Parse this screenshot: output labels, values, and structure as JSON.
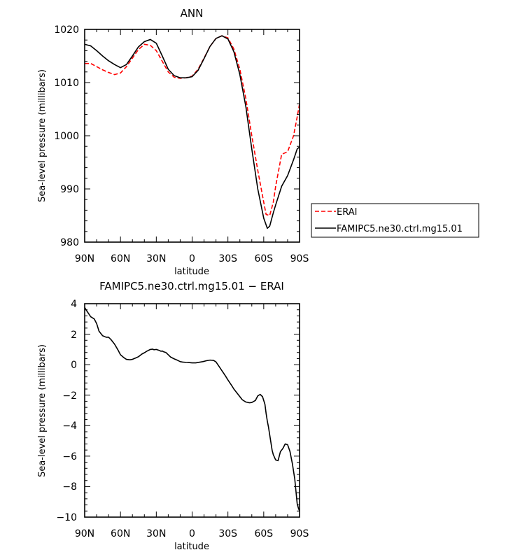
{
  "chart_data": [
    {
      "type": "line",
      "title": "ANN",
      "xlabel": "latitude",
      "ylabel": "Sea-level pressure (millibars)",
      "xlim": [
        90,
        -90
      ],
      "ylim": [
        980,
        1020
      ],
      "x_ticks": [
        90,
        60,
        30,
        0,
        -30,
        -60,
        -90
      ],
      "x_tick_labels": [
        "90N",
        "60N",
        "30N",
        "0",
        "30S",
        "60S",
        "90S"
      ],
      "y_ticks": [
        980,
        990,
        1000,
        1010,
        1020
      ],
      "y_tick_labels": [
        "980",
        "990",
        "1000",
        "1010",
        "1020"
      ],
      "legend_position": "right",
      "grid": false,
      "series": [
        {
          "name": "ERAI",
          "color": "#ff0000",
          "dash": "dashed",
          "x": [
            90,
            85,
            80,
            75,
            70,
            65,
            60,
            55,
            50,
            45,
            40,
            35,
            30,
            25,
            20,
            15,
            10,
            5,
            0,
            -5,
            -10,
            -15,
            -20,
            -25,
            -30,
            -35,
            -40,
            -45,
            -50,
            -55,
            -60,
            -62,
            -65,
            -68,
            -70,
            -75,
            -80,
            -85,
            -88,
            -90
          ],
          "y": [
            1013.6,
            1013.6,
            1013.0,
            1012.4,
            1011.9,
            1011.5,
            1011.8,
            1013.0,
            1014.6,
            1016.2,
            1017.2,
            1017.0,
            1016.0,
            1014.0,
            1012.0,
            1011.0,
            1010.8,
            1010.9,
            1011.2,
            1012.5,
            1014.6,
            1016.8,
            1018.3,
            1018.8,
            1018.4,
            1016.3,
            1012.5,
            1007.0,
            1000.0,
            993.5,
            987.5,
            985.2,
            985.0,
            987.5,
            990.5,
            996.5,
            997.0,
            1000.0,
            1003.5,
            1006.0
          ]
        },
        {
          "name": "FAMIPC5.ne30.ctrl.mg15.01",
          "color": "#000000",
          "dash": "solid",
          "x": [
            90,
            85,
            80,
            75,
            70,
            65,
            60,
            55,
            50,
            45,
            40,
            35,
            30,
            25,
            20,
            15,
            10,
            5,
            0,
            -5,
            -10,
            -15,
            -20,
            -25,
            -30,
            -35,
            -40,
            -45,
            -50,
            -55,
            -60,
            -63,
            -65,
            -68,
            -70,
            -75,
            -80,
            -85,
            -88,
            -90
          ],
          "y": [
            1017.2,
            1016.9,
            1016.0,
            1015.0,
            1014.1,
            1013.4,
            1012.8,
            1013.4,
            1015.0,
            1016.7,
            1017.7,
            1018.1,
            1017.4,
            1015.0,
            1012.5,
            1011.3,
            1010.9,
            1010.9,
            1011.1,
            1012.3,
            1014.5,
            1016.8,
            1018.3,
            1018.8,
            1018.2,
            1015.8,
            1011.5,
            1005.5,
            997.5,
            990.0,
            984.5,
            982.6,
            983.0,
            985.5,
            987.0,
            990.5,
            992.5,
            995.5,
            997.5,
            997.9
          ]
        }
      ]
    },
    {
      "type": "line",
      "title": "FAMIPC5.ne30.ctrl.mg15.01 − ERAI",
      "xlabel": "latitude",
      "ylabel": "Sea-level pressure (millibars)",
      "xlim": [
        90,
        -90
      ],
      "ylim": [
        -10,
        4
      ],
      "x_ticks": [
        90,
        60,
        30,
        0,
        -30,
        -60,
        -90
      ],
      "x_tick_labels": [
        "90N",
        "60N",
        "30N",
        "0",
        "30S",
        "60S",
        "90S"
      ],
      "y_ticks": [
        -10,
        -8,
        -6,
        -4,
        -2,
        0,
        2,
        4
      ],
      "y_tick_labels": [
        "−10",
        "−8",
        "−6",
        "−4",
        "−2",
        "0",
        "2",
        "4"
      ],
      "grid": false,
      "series": [
        {
          "color": "#000000",
          "dash": "solid",
          "x": [
            90,
            88,
            85,
            82,
            80,
            78,
            75,
            72,
            70,
            68,
            65,
            62,
            60,
            57,
            55,
            52,
            50,
            47,
            45,
            42,
            40,
            38,
            35,
            33,
            32,
            30,
            28,
            26,
            25,
            24,
            22,
            20,
            18,
            15,
            12,
            10,
            8,
            5,
            3,
            0,
            -3,
            -6,
            -9,
            -12,
            -15,
            -18,
            -20,
            -22,
            -25,
            -28,
            -30,
            -33,
            -35,
            -38,
            -40,
            -42,
            -45,
            -48,
            -50,
            -53,
            -55,
            -57,
            -59,
            -61,
            -62,
            -63,
            -64,
            -65,
            -66,
            -67,
            -68,
            -70,
            -72,
            -74,
            -76,
            -78,
            -80,
            -82,
            -84,
            -86,
            -87,
            -88,
            -89,
            -90
          ],
          "y": [
            3.75,
            3.5,
            3.15,
            3.0,
            2.7,
            2.2,
            1.9,
            1.8,
            1.8,
            1.65,
            1.35,
            0.95,
            0.65,
            0.45,
            0.35,
            0.32,
            0.35,
            0.45,
            0.52,
            0.7,
            0.78,
            0.88,
            1.0,
            1.02,
            0.98,
            1.0,
            0.95,
            0.88,
            0.9,
            0.85,
            0.8,
            0.65,
            0.5,
            0.38,
            0.28,
            0.2,
            0.17,
            0.15,
            0.14,
            0.12,
            0.12,
            0.16,
            0.2,
            0.26,
            0.3,
            0.28,
            0.18,
            -0.05,
            -0.4,
            -0.75,
            -1.0,
            -1.35,
            -1.6,
            -1.9,
            -2.1,
            -2.3,
            -2.45,
            -2.5,
            -2.48,
            -2.35,
            -2.05,
            -1.95,
            -2.1,
            -2.6,
            -3.2,
            -3.7,
            -4.1,
            -4.6,
            -5.1,
            -5.6,
            -5.9,
            -6.25,
            -6.3,
            -5.7,
            -5.5,
            -5.2,
            -5.25,
            -5.7,
            -6.5,
            -7.5,
            -8.3,
            -9.1,
            -9.4,
            -9.6
          ]
        }
      ]
    }
  ]
}
